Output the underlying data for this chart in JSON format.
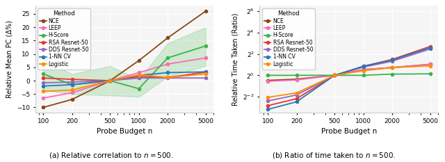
{
  "x": [
    100,
    200,
    500,
    1000,
    2000,
    5000
  ],
  "left": {
    "ylabel": "Relative Mean PC (Δ%)",
    "xlabel": "Probe Budget n",
    "caption": "(a) Relative correlation to $n = 500$.",
    "ylim": [
      -12,
      28
    ],
    "yticks": [
      -10,
      -5,
      0,
      5,
      10,
      15,
      20,
      25
    ],
    "methods": {
      "NCE": {
        "color": "#8B4513",
        "values": [
          -10,
          -7,
          0,
          7.5,
          16,
          26
        ],
        "fill": null
      },
      "LEEP": {
        "color": "#FF69B4",
        "values": [
          -6.5,
          -4.5,
          0,
          3,
          6.2,
          8.5
        ],
        "fill": null
      },
      "H-Score": {
        "color": "#3cb34a",
        "values": [
          2.5,
          -1.5,
          0,
          -3,
          8.5,
          13
        ],
        "fill": {
          "lower": [
            -3.5,
            -5,
            -5.5,
            -6,
            1.5,
            5.5
          ],
          "upper": [
            7.5,
            2.5,
            5.5,
            0.5,
            14,
            20
          ]
        }
      },
      "RSA Resnet-50": {
        "color": "#e8372b",
        "values": [
          1,
          0.5,
          0,
          1.5,
          1.2,
          3.2
        ],
        "fill": null
      },
      "DDS Resnet-50": {
        "color": "#9467bd",
        "values": [
          -0.8,
          -0.5,
          0,
          1,
          1,
          1
        ],
        "fill": null
      },
      "1-NN CV": {
        "color": "#2778b8",
        "values": [
          -2,
          -1.5,
          0,
          2,
          3,
          3.3
        ],
        "fill": null
      },
      "Logistic": {
        "color": "#ff8c00",
        "values": [
          -4,
          -3.5,
          0,
          2.2,
          1.2,
          2.5
        ],
        "fill": null
      }
    }
  },
  "right": {
    "ylabel": "Relative Time Taken (Ratio)",
    "xlabel": "Probe Budget n",
    "caption": "(b) Ratio of time taken to $n = 500$.",
    "ylim_log2": [
      -3.5,
      6.5
    ],
    "ytick_powers": [
      -2,
      0,
      2,
      4,
      6
    ],
    "methods": {
      "NCE": {
        "color": "#8B4513",
        "values": [
          0.72,
          0.78,
          1.0,
          1.45,
          1.65,
          2.05
        ]
      },
      "LEEP": {
        "color": "#FF69B4",
        "values": [
          0.68,
          0.74,
          1.0,
          1.45,
          1.65,
          2.05
        ]
      },
      "H-Score": {
        "color": "#3cb34a",
        "values": [
          1.0,
          1.0,
          1.0,
          1.0,
          1.08,
          1.1
        ]
      },
      "RSA Resnet-50": {
        "color": "#e8372b",
        "values": [
          0.14,
          0.22,
          1.0,
          1.8,
          2.8,
          6.5
        ]
      },
      "DDS Resnet-50": {
        "color": "#9467bd",
        "values": [
          0.19,
          0.28,
          1.0,
          1.7,
          2.5,
          5.5
        ]
      },
      "1-NN CV": {
        "color": "#2778b8",
        "values": [
          0.11,
          0.18,
          1.0,
          1.8,
          2.7,
          6.0
        ]
      },
      "Logistic": {
        "color": "#ff8c00",
        "values": [
          0.24,
          0.32,
          1.0,
          1.35,
          1.65,
          1.85
        ]
      }
    }
  }
}
